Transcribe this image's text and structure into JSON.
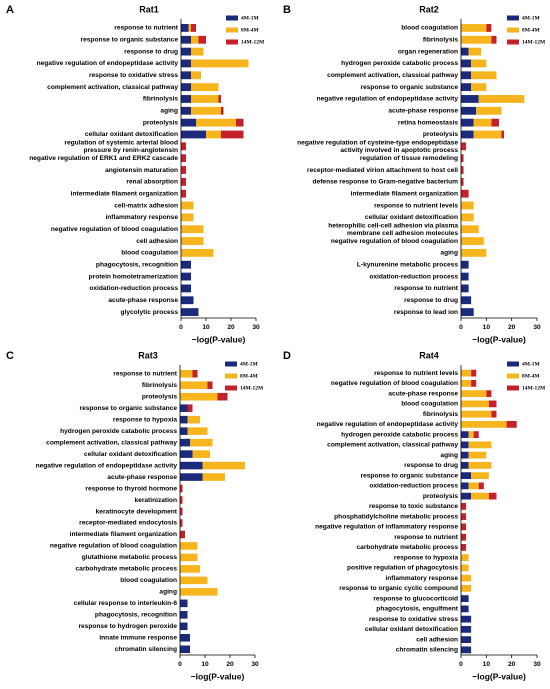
{
  "chart_data": [
    {
      "type": "bar",
      "orientation": "horizontal",
      "stacked": true,
      "label": "A",
      "title": "Rat1",
      "xlabel": "−log(P-value)",
      "xlim": [
        0,
        30
      ],
      "xticks": [
        0,
        10,
        20,
        30
      ],
      "categories": [
        "response to nutrient",
        "response to organic substance",
        "response to drug",
        "negative regulation of endopeptidase activity",
        "response to oxidative stress",
        "complement activation, classical pathway",
        "fibrinolysis",
        "aging",
        "proteolysis",
        "cellular oxidant detoxification",
        [
          "regulation of systemic arterial blood",
          "pressure by renin-angiotensin"
        ],
        "negative regulation of ERK1 and ERK2 cascade",
        "angiotensin maturation",
        "renal absorption",
        "intermediate filament organization",
        "cell-matrix adhesion",
        "inflammatory response",
        "negative regulation of blood coagulation",
        "cell adhesion",
        "blood coagulation",
        "phagocytosis, recognition",
        "protein homotetramerization",
        "oxidation-reduction process",
        "acute-phase response",
        "glycolytic process"
      ],
      "series": [
        {
          "name": "4M-1M",
          "color": "#1c2a7c",
          "values": [
            3,
            4,
            4,
            4,
            4,
            4,
            4,
            4,
            6,
            10,
            0,
            0,
            0,
            0,
            0,
            0,
            0,
            0,
            0,
            0,
            4,
            4,
            4,
            5,
            7
          ]
        },
        {
          "name": "8M-4M",
          "color": "#f6b51d",
          "values": [
            1,
            3,
            5,
            23,
            4,
            11,
            11,
            12,
            16,
            6,
            0,
            0,
            0,
            0,
            0,
            5,
            5,
            9,
            9,
            13,
            0,
            0,
            0,
            0,
            0
          ]
        },
        {
          "name": "14M-12M",
          "color": "#c4212a",
          "values": [
            2,
            3,
            0,
            0,
            0,
            0,
            1,
            1,
            3,
            9,
            2,
            2,
            2,
            2,
            2,
            0,
            0,
            0,
            0,
            0,
            0,
            0,
            0,
            0,
            0
          ]
        }
      ]
    },
    {
      "type": "bar",
      "orientation": "horizontal",
      "stacked": true,
      "label": "B",
      "title": "Rat2",
      "xlabel": "−log(P-value)",
      "xlim": [
        0,
        30
      ],
      "xticks": [
        0,
        10,
        20,
        30
      ],
      "categories": [
        "blood coagulation",
        "fibrinolysis",
        "organ regeneration",
        "hydrogen peroxide catabolic process",
        "complement activation, classical pathway",
        "response to organic substance",
        "negative regulation of endopeptidase activity",
        "acute-phase response",
        "retina homeostasis",
        "proteolysis",
        [
          "negative regulation of cysteine-type endopeptidase",
          "activity involved in apoptotic process"
        ],
        "regulation of tissue remodeling",
        "receptor-mediated virion attachment to host cell",
        "defense response to Gram-negative bacterium",
        "intermediate filament organization",
        "response to nutrient levels",
        "cellular oxidant detoxification",
        [
          "heterophilic cell-cell adhesion via plasma",
          "membrane cell adhesion molecules"
        ],
        "negative regulation of blood coagulation",
        "aging",
        "L-kynurenine metabolic process",
        "oxidation-reduction process",
        "response to nutrient",
        "response to drug",
        "response to lead ion"
      ],
      "series": [
        {
          "name": "4M-1M",
          "color": "#1c2a7c",
          "values": [
            0,
            0,
            3,
            4,
            4,
            4,
            7,
            6,
            5,
            5,
            0,
            0,
            0,
            0,
            0,
            0,
            0,
            0,
            0,
            0,
            3,
            3,
            3,
            4,
            5
          ]
        },
        {
          "name": "8M-4M",
          "color": "#f6b51d",
          "values": [
            10,
            12,
            5,
            6,
            10,
            6,
            18,
            10,
            7,
            11,
            0,
            0,
            0,
            0,
            0,
            5,
            5,
            7,
            9,
            10,
            0,
            0,
            0,
            0,
            0
          ]
        },
        {
          "name": "14M-12M",
          "color": "#c4212a",
          "values": [
            2,
            2,
            0,
            0,
            0,
            0,
            0,
            0,
            3,
            1,
            2,
            1,
            1,
            1,
            3,
            0,
            0,
            0,
            0,
            0,
            0,
            0,
            0,
            0,
            0
          ]
        }
      ]
    },
    {
      "type": "bar",
      "orientation": "horizontal",
      "stacked": true,
      "label": "C",
      "title": "Rat3",
      "xlabel": "−log(P-value)",
      "xlim": [
        0,
        30
      ],
      "xticks": [
        0,
        10,
        20,
        30
      ],
      "categories": [
        "response to nutrient",
        "fibrinolysis",
        "proteolysis",
        "response to organic substance",
        "response to hypoxia",
        "hydrogen peroxide catabolic process",
        "complement activation, classical pathway",
        "cellular oxidant detoxification",
        "negative regulation of endopeptidase activity",
        "acute-phase response",
        "response to thyroid hormone",
        "keratinization",
        "keratinocyte development",
        "receptor-mediated endocytosis",
        "intermediate filament organization",
        "negative regulation of blood coagulation",
        "glutathione metabolic process",
        "carbohydrate metabolic process",
        "blood coagulation",
        "aging",
        "cellular response to interleukin-6",
        "phagocytosis, recognition",
        "response to hydrogen peroxide",
        "innate immune response",
        "chromatin silencing"
      ],
      "series": [
        {
          "name": "4M-1M",
          "color": "#1c2a7c",
          "values": [
            0,
            0,
            0,
            3,
            3,
            3,
            4,
            5,
            9,
            9,
            0,
            0,
            0,
            0,
            0,
            0,
            0,
            0,
            0,
            0,
            3,
            3,
            3,
            4,
            4
          ]
        },
        {
          "name": "8M-4M",
          "color": "#f6b51d",
          "values": [
            5,
            11,
            15,
            0,
            5,
            8,
            9,
            7,
            17,
            9,
            0,
            0,
            0,
            0,
            0,
            7,
            7,
            8,
            11,
            15,
            0,
            0,
            0,
            0,
            0
          ]
        },
        {
          "name": "14M-12M",
          "color": "#c4212a",
          "values": [
            2,
            2,
            4,
            2,
            0,
            0,
            0,
            0,
            0,
            0,
            1,
            1,
            1,
            1,
            2,
            0,
            0,
            0,
            0,
            0,
            0,
            0,
            0,
            0,
            0
          ]
        }
      ]
    },
    {
      "type": "bar",
      "orientation": "horizontal",
      "stacked": true,
      "label": "D",
      "title": "Rat4",
      "xlabel": "−log(P-value)",
      "xlim": [
        0,
        30
      ],
      "xticks": [
        0,
        10,
        20,
        30
      ],
      "categories": [
        "response to nutrient levels",
        "negative regulation of blood coagulation",
        "acute-phase response",
        "blood coagulation",
        "fibrinolysis",
        "negative regulation of endopeptidase activity",
        "hydrogen peroxide catabolic process",
        "complement activation, classical pathway",
        "aging",
        "response to drug",
        "response to organic substance",
        "oxidation-reduction process",
        "proteolysis",
        "response to toxic substance",
        "phosphatidylcholine metabolic process",
        "negative regulation of inflammatory response",
        "response to nutrient",
        "carbohydrate metabolic process",
        "response to hypoxia",
        "positive regulation of phagocytosis",
        "inflammatory response",
        "response to organic cyclic compound",
        "response to glucocorticoid",
        "phagocytosis, engulfment",
        "response to oxidative stress",
        "cellular oxidant detoxification",
        "cell adhesion",
        "chromatin silencing"
      ],
      "series": [
        {
          "name": "4M-1M",
          "color": "#1c2a7c",
          "values": [
            0,
            0,
            0,
            0,
            0,
            0,
            3,
            3,
            3,
            3,
            4,
            3,
            4,
            0,
            0,
            0,
            0,
            0,
            0,
            0,
            0,
            0,
            3,
            3,
            4,
            4,
            4,
            4
          ]
        },
        {
          "name": "8M-4M",
          "color": "#f6b51d",
          "values": [
            4,
            4,
            10,
            11,
            12,
            18,
            2,
            9,
            7,
            9,
            7,
            4,
            7,
            0,
            0,
            0,
            0,
            0,
            3,
            3,
            4,
            4,
            0,
            0,
            0,
            0,
            0,
            0
          ]
        },
        {
          "name": "14M-12M",
          "color": "#c4212a",
          "values": [
            2,
            2,
            2,
            3,
            2,
            4,
            2,
            0,
            0,
            0,
            0,
            2,
            3,
            2,
            2,
            2,
            2,
            2,
            0,
            0,
            0,
            0,
            0,
            0,
            0,
            0,
            0,
            0
          ]
        }
      ]
    }
  ]
}
